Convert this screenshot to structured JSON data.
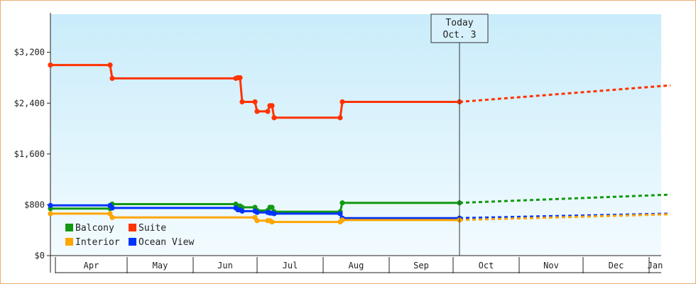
{
  "chart_data": {
    "type": "line",
    "title": "",
    "xlabel": "",
    "ylabel": "",
    "y_ticks": [
      "$0",
      "$800",
      "$1,600",
      "$2,400",
      "$3,200"
    ],
    "y_tick_values": [
      0,
      800,
      1600,
      2400,
      3200
    ],
    "ylim": [
      0,
      3800
    ],
    "x_months": [
      "Apr",
      "May",
      "Jun",
      "Jul",
      "Aug",
      "Sep",
      "Oct",
      "Nov",
      "Dec",
      "Jan"
    ],
    "today_marker": {
      "line1": "Today",
      "line2": "Oct. 3",
      "date": "2024-10-03"
    },
    "legend": {
      "placement": "bottom-left"
    },
    "series": [
      {
        "name": "Suite",
        "color": "#ff3300",
        "points": [
          [
            "2024-03-25",
            3000
          ],
          [
            "2024-04-22",
            3000
          ],
          [
            "2024-04-23",
            2790
          ],
          [
            "2024-06-20",
            2790
          ],
          [
            "2024-06-21",
            2800
          ],
          [
            "2024-06-22",
            2800
          ],
          [
            "2024-06-23",
            2420
          ],
          [
            "2024-06-29",
            2420
          ],
          [
            "2024-06-30",
            2270
          ],
          [
            "2024-07-05",
            2270
          ],
          [
            "2024-07-06",
            2360
          ],
          [
            "2024-07-07",
            2360
          ],
          [
            "2024-07-08",
            2170
          ],
          [
            "2024-08-08",
            2170
          ],
          [
            "2024-08-09",
            2420
          ],
          [
            "2024-10-03",
            2420
          ]
        ],
        "forecast": [
          [
            "2024-10-03",
            2420
          ],
          [
            "2025-01-10",
            2680
          ]
        ]
      },
      {
        "name": "Balcony",
        "color": "#119911",
        "points": [
          [
            "2024-03-25",
            740
          ],
          [
            "2024-04-22",
            740
          ],
          [
            "2024-04-23",
            810
          ],
          [
            "2024-06-20",
            810
          ],
          [
            "2024-06-21",
            780
          ],
          [
            "2024-06-22",
            780
          ],
          [
            "2024-06-23",
            760
          ],
          [
            "2024-06-29",
            760
          ],
          [
            "2024-06-30",
            710
          ],
          [
            "2024-07-05",
            710
          ],
          [
            "2024-07-06",
            760
          ],
          [
            "2024-07-07",
            760
          ],
          [
            "2024-07-08",
            690
          ],
          [
            "2024-08-08",
            690
          ],
          [
            "2024-08-09",
            830
          ],
          [
            "2024-10-03",
            830
          ]
        ],
        "forecast": [
          [
            "2024-10-03",
            830
          ],
          [
            "2025-01-10",
            960
          ]
        ]
      },
      {
        "name": "Ocean View",
        "color": "#0033ff",
        "points": [
          [
            "2024-03-25",
            790
          ],
          [
            "2024-04-22",
            790
          ],
          [
            "2024-04-23",
            750
          ],
          [
            "2024-06-20",
            750
          ],
          [
            "2024-06-21",
            720
          ],
          [
            "2024-06-22",
            720
          ],
          [
            "2024-06-23",
            700
          ],
          [
            "2024-06-29",
            700
          ],
          [
            "2024-06-30",
            680
          ],
          [
            "2024-07-05",
            680
          ],
          [
            "2024-07-06",
            670
          ],
          [
            "2024-07-07",
            670
          ],
          [
            "2024-07-08",
            660
          ],
          [
            "2024-08-08",
            660
          ],
          [
            "2024-08-09",
            590
          ],
          [
            "2024-10-03",
            590
          ]
        ],
        "forecast": [
          [
            "2024-10-03",
            590
          ],
          [
            "2025-01-10",
            660
          ]
        ]
      },
      {
        "name": "Interior",
        "color": "#ffa500",
        "points": [
          [
            "2024-03-25",
            660
          ],
          [
            "2024-04-22",
            660
          ],
          [
            "2024-04-23",
            600
          ],
          [
            "2024-06-29",
            600
          ],
          [
            "2024-06-30",
            550
          ],
          [
            "2024-07-05",
            550
          ],
          [
            "2024-07-06",
            550
          ],
          [
            "2024-07-07",
            530
          ],
          [
            "2024-08-08",
            530
          ],
          [
            "2024-08-09",
            560
          ],
          [
            "2024-10-03",
            560
          ]
        ],
        "forecast": [
          [
            "2024-10-03",
            560
          ],
          [
            "2025-01-10",
            650
          ]
        ]
      }
    ]
  }
}
